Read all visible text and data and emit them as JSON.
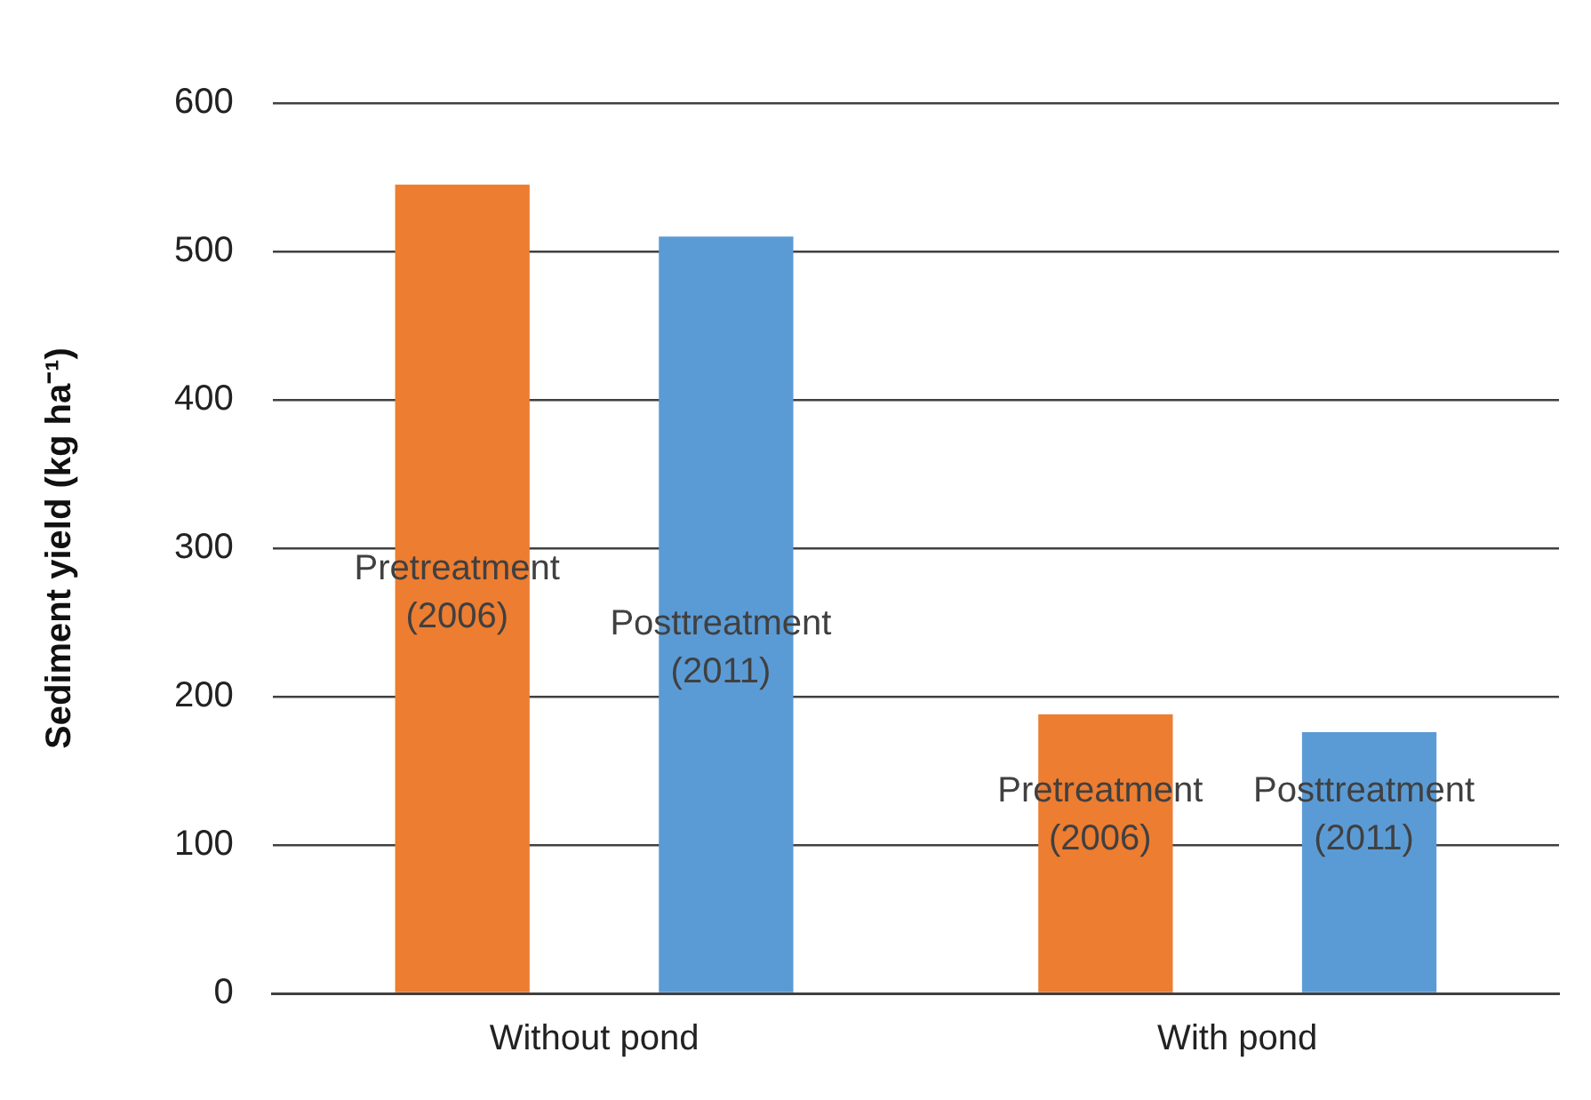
{
  "chart_data": {
    "type": "bar",
    "ylabel": "Sediment yield (kg ha⁻¹)",
    "categories": [
      "Without pond",
      "With pond"
    ],
    "series": [
      {
        "name": "Pretreatment (2006)",
        "color": "#ed7d31",
        "values": [
          545,
          188
        ]
      },
      {
        "name": "Posttreatment (2011)",
        "color": "#5b9bd5",
        "values": [
          510,
          176
        ]
      }
    ],
    "ylim": [
      0,
      600
    ],
    "yticks": [
      0,
      100,
      200,
      300,
      400,
      500,
      600
    ],
    "grid": "y",
    "legend": false
  }
}
